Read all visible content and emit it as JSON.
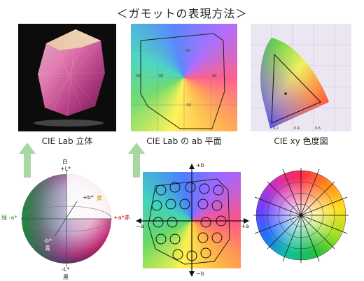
{
  "title": "＜ガモットの表現方法＞",
  "captions": {
    "lab_solid": "CIE Lab 立体",
    "lab_ab_plane": "CIE Lab の ab 平面",
    "xy_chromaticity": "CIE xy 色度図"
  },
  "sphere_labels": {
    "white": "白",
    "plus_l": "+L*",
    "plus_b": "+b*",
    "yellow": "黄",
    "minus_a_green": "緑 -a*",
    "plus_a_red": "+a*赤",
    "minus_b": "-b*",
    "blue": "青",
    "minus_l": "-L*",
    "black": "黒"
  },
  "ab_plane_labels": {
    "plus_b": "+b",
    "minus_b": "−b",
    "minus_a": "−a",
    "plus_a": "+a"
  },
  "colors": {
    "arrow": "#a7d8a2",
    "text": "#222222",
    "yellow_text": "#c8a000",
    "red_text": "#c00000",
    "green_text": "#2a8a2a"
  }
}
